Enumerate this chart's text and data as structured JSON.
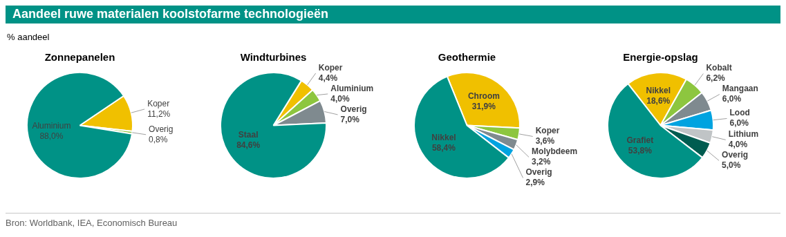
{
  "chart_data": [
    {
      "type": "other",
      "title": "Aandeel ruwe materialen koolstofarme technologieën",
      "subtitle": "% aandeel",
      "annotations": [
        "Bron: Worldbank, IEA, Economisch Bureau"
      ]
    },
    {
      "type": "pie",
      "title": "Zonnepanelen",
      "categories": [
        "Koper",
        "Overig",
        "Aluminium"
      ],
      "values": [
        11.2,
        0.8,
        88.0
      ],
      "value_labels": [
        "11,2%",
        "0,8%",
        "88,0%"
      ],
      "colors": [
        "#f0c000",
        "#8dc63f",
        "#009286"
      ]
    },
    {
      "type": "pie",
      "title": "Windturbines",
      "categories": [
        "Koper",
        "Aluminium",
        "Overig",
        "Staal"
      ],
      "values": [
        4.4,
        4.0,
        7.0,
        84.6
      ],
      "value_labels": [
        "4,4%",
        "4,0%",
        "7,0%",
        "84,6%"
      ],
      "colors": [
        "#f0c000",
        "#8dc63f",
        "#7f8a8f",
        "#009286"
      ]
    },
    {
      "type": "pie",
      "title": "Geothermie",
      "categories": [
        "Chroom",
        "Koper",
        "Molybdeem",
        "Overig",
        "Nikkel"
      ],
      "values": [
        31.9,
        3.6,
        3.2,
        2.9,
        58.4
      ],
      "value_labels": [
        "31,9%",
        "3,6%",
        "3,2%",
        "2,9%",
        "58,4%"
      ],
      "colors": [
        "#f0c000",
        "#8dc63f",
        "#7f8a8f",
        "#00a3e0",
        "#009286"
      ]
    },
    {
      "type": "pie",
      "title": "Energie-opslag",
      "categories": [
        "Nikkel",
        "Kobalt",
        "Mangaan",
        "Lood",
        "Lithium",
        "Overig",
        "Grafiet"
      ],
      "values": [
        18.6,
        6.2,
        6.0,
        6.0,
        4.0,
        5.0,
        53.8
      ],
      "value_labels": [
        "18,6%",
        "6,2%",
        "6,0%",
        "6,0%",
        "4,0%",
        "5,0%",
        "53,8%"
      ],
      "colors": [
        "#f0c000",
        "#8dc63f",
        "#7f8a8f",
        "#00a3e0",
        "#c0c4c6",
        "#005c50",
        "#009286"
      ]
    }
  ]
}
